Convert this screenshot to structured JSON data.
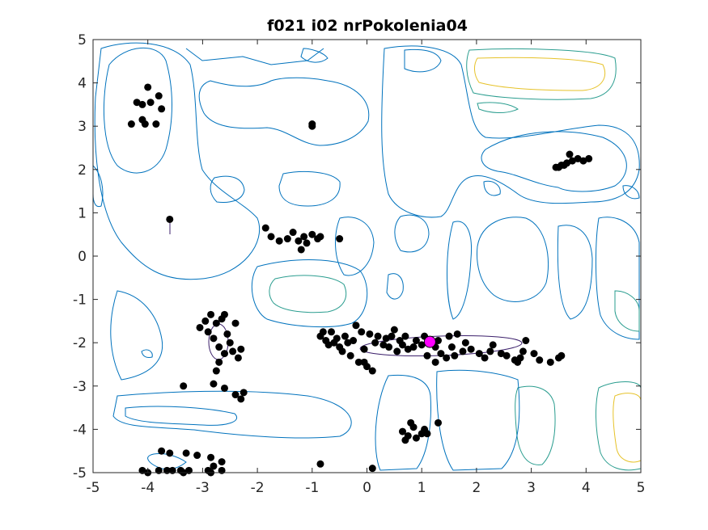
{
  "chart_data": {
    "type": "scatter",
    "title": "f021 i02 nrPokolenia04",
    "xlabel": "",
    "ylabel": "",
    "xlim": [
      -5,
      5
    ],
    "ylim": [
      -5,
      5
    ],
    "xticks": [
      -5,
      -4,
      -3,
      -2,
      -1,
      0,
      1,
      2,
      3,
      4,
      5
    ],
    "yticks": [
      -5,
      -4,
      -3,
      -2,
      -1,
      0,
      1,
      2,
      3,
      4,
      5
    ],
    "grid": false,
    "colors": {
      "population": "#000000",
      "best": "#ff00ff",
      "contour_low": "#0072bd",
      "contour_mid": "#2a9d8f",
      "contour_high": "#e6c229"
    },
    "series": [
      {
        "points": [
          [
            -4.3,
            3.05
          ],
          [
            -4.2,
            3.55
          ],
          [
            -4.1,
            3.5
          ],
          [
            -4.05,
            3.05
          ],
          [
            -3.95,
            3.55
          ],
          [
            -3.85,
            3.05
          ],
          [
            -4.0,
            3.9
          ],
          [
            -3.8,
            3.7
          ],
          [
            -3.75,
            3.4
          ],
          [
            -4.1,
            3.15
          ],
          [
            -1.0,
            3.0
          ],
          [
            -1.0,
            3.05
          ],
          [
            -3.6,
            0.85
          ],
          [
            -1.85,
            0.65
          ],
          [
            -1.75,
            0.45
          ],
          [
            -1.6,
            0.35
          ],
          [
            -1.45,
            0.4
          ],
          [
            -1.35,
            0.55
          ],
          [
            -1.25,
            0.35
          ],
          [
            -1.15,
            0.45
          ],
          [
            -1.1,
            0.3
          ],
          [
            -1.0,
            0.5
          ],
          [
            -0.9,
            0.4
          ],
          [
            -0.85,
            0.45
          ],
          [
            -1.2,
            0.15
          ],
          [
            -0.5,
            0.4
          ],
          [
            3.45,
            2.05
          ],
          [
            3.55,
            2.1
          ],
          [
            3.65,
            2.15
          ],
          [
            3.7,
            2.35
          ],
          [
            3.75,
            2.2
          ],
          [
            3.85,
            2.25
          ],
          [
            3.95,
            2.2
          ],
          [
            4.05,
            2.25
          ],
          [
            3.6,
            2.1
          ],
          [
            3.5,
            2.05
          ],
          [
            -3.05,
            -1.65
          ],
          [
            -2.95,
            -1.5
          ],
          [
            -2.9,
            -1.75
          ],
          [
            -2.85,
            -1.35
          ],
          [
            -2.8,
            -1.9
          ],
          [
            -2.75,
            -1.55
          ],
          [
            -2.7,
            -2.1
          ],
          [
            -2.65,
            -1.45
          ],
          [
            -2.6,
            -2.25
          ],
          [
            -2.55,
            -1.8
          ],
          [
            -2.5,
            -2.0
          ],
          [
            -2.45,
            -2.2
          ],
          [
            -2.4,
            -1.55
          ],
          [
            -2.35,
            -2.35
          ],
          [
            -2.6,
            -1.35
          ],
          [
            -2.7,
            -2.45
          ],
          [
            -2.3,
            -2.15
          ],
          [
            -2.75,
            -2.65
          ],
          [
            -3.35,
            -3.0
          ],
          [
            -2.8,
            -2.95
          ],
          [
            -2.6,
            -3.05
          ],
          [
            -2.4,
            -3.2
          ],
          [
            -2.3,
            -3.3
          ],
          [
            -2.25,
            -3.15
          ],
          [
            -0.85,
            -1.85
          ],
          [
            -0.8,
            -1.75
          ],
          [
            -0.75,
            -1.95
          ],
          [
            -0.7,
            -2.05
          ],
          [
            -0.65,
            -1.75
          ],
          [
            -0.6,
            -2.0
          ],
          [
            -0.55,
            -1.9
          ],
          [
            -0.5,
            -2.1
          ],
          [
            -0.45,
            -2.2
          ],
          [
            -0.4,
            -1.85
          ],
          [
            -0.35,
            -2.0
          ],
          [
            -0.3,
            -2.3
          ],
          [
            -0.25,
            -1.95
          ],
          [
            -0.2,
            -1.6
          ],
          [
            -0.15,
            -2.45
          ],
          [
            -0.1,
            -1.75
          ],
          [
            -0.05,
            -2.15
          ],
          [
            0.0,
            -2.55
          ],
          [
            0.05,
            -1.8
          ],
          [
            0.1,
            -2.65
          ],
          [
            0.15,
            -2.0
          ],
          [
            -0.05,
            -2.45
          ],
          [
            0.2,
            -1.85
          ],
          [
            0.3,
            -2.05
          ],
          [
            0.35,
            -1.9
          ],
          [
            0.4,
            -2.1
          ],
          [
            0.45,
            -1.85
          ],
          [
            0.5,
            -1.7
          ],
          [
            0.55,
            -2.2
          ],
          [
            0.6,
            -1.95
          ],
          [
            0.65,
            -2.05
          ],
          [
            0.7,
            -1.85
          ],
          [
            0.75,
            -2.15
          ],
          [
            0.9,
            -1.95
          ],
          [
            1.0,
            -2.05
          ],
          [
            1.05,
            -1.85
          ],
          [
            1.1,
            -2.3
          ],
          [
            1.25,
            -2.1
          ],
          [
            1.3,
            -1.95
          ],
          [
            1.35,
            -2.25
          ],
          [
            1.45,
            -2.35
          ],
          [
            1.5,
            -1.85
          ],
          [
            1.55,
            -2.1
          ],
          [
            1.6,
            -2.3
          ],
          [
            1.65,
            -1.8
          ],
          [
            1.75,
            -2.2
          ],
          [
            1.8,
            -2.0
          ],
          [
            1.9,
            -2.15
          ],
          [
            2.05,
            -2.25
          ],
          [
            2.15,
            -2.35
          ],
          [
            2.25,
            -2.2
          ],
          [
            2.3,
            -2.05
          ],
          [
            2.45,
            -2.25
          ],
          [
            2.55,
            -2.3
          ],
          [
            2.7,
            -2.4
          ],
          [
            2.8,
            -2.35
          ],
          [
            2.85,
            -2.2
          ],
          [
            2.9,
            -1.95
          ],
          [
            3.05,
            -2.25
          ],
          [
            3.15,
            -2.4
          ],
          [
            3.35,
            -2.45
          ],
          [
            3.5,
            -2.35
          ],
          [
            3.55,
            -2.3
          ],
          [
            2.75,
            -2.45
          ],
          [
            1.25,
            -2.45
          ],
          [
            0.85,
            -2.1
          ],
          [
            0.8,
            -3.85
          ],
          [
            0.85,
            -3.95
          ],
          [
            0.65,
            -4.05
          ],
          [
            0.75,
            -4.15
          ],
          [
            0.7,
            -4.25
          ],
          [
            0.9,
            -4.2
          ],
          [
            1.0,
            -4.1
          ],
          [
            1.05,
            -4.0
          ],
          [
            1.1,
            -4.1
          ],
          [
            1.3,
            -3.85
          ],
          [
            -3.75,
            -4.5
          ],
          [
            -3.6,
            -4.55
          ],
          [
            -3.3,
            -4.55
          ],
          [
            -3.1,
            -4.6
          ],
          [
            -2.85,
            -4.65
          ],
          [
            -2.65,
            -4.75
          ],
          [
            -2.8,
            -4.85
          ],
          [
            -4.0,
            -5.0
          ],
          [
            -4.1,
            -4.95
          ],
          [
            -3.8,
            -4.95
          ],
          [
            -3.65,
            -4.95
          ],
          [
            -3.55,
            -4.95
          ],
          [
            -3.4,
            -4.95
          ],
          [
            -3.25,
            -4.95
          ],
          [
            -3.35,
            -5.0
          ],
          [
            -2.9,
            -4.95
          ],
          [
            -2.85,
            -5.0
          ],
          [
            -2.65,
            -4.95
          ],
          [
            -0.85,
            -4.8
          ],
          [
            0.1,
            -4.9
          ]
        ]
      },
      {
        "points": [
          [
            1.15,
            -1.98
          ]
        ]
      }
    ]
  }
}
